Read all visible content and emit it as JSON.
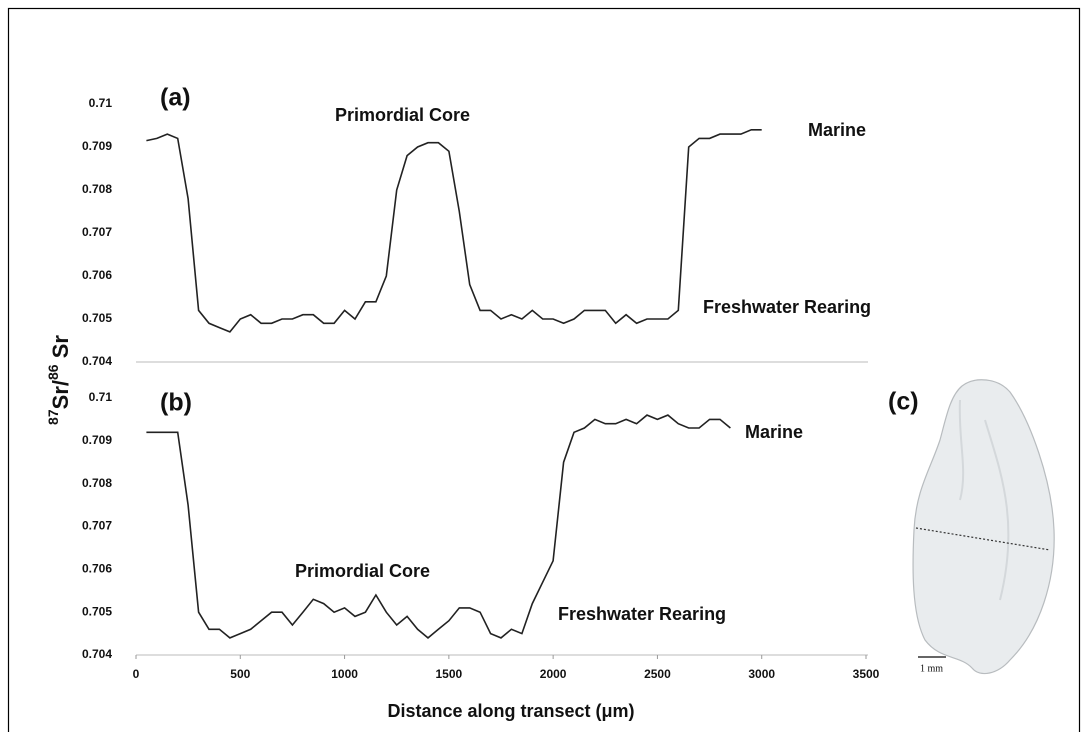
{
  "chart_data": [
    {
      "type": "line",
      "label": "(a)",
      "y_label_parts": [
        "87",
        "Sr/",
        "86",
        " Sr"
      ],
      "annotations": [
        "Primordial Core",
        "Marine",
        "Freshwater Rearing"
      ],
      "xlim": [
        0,
        3500
      ],
      "ylim": [
        0.704,
        0.71
      ],
      "yticks": [
        0.71,
        0.709,
        0.708,
        0.707,
        0.706,
        0.705,
        0.704
      ],
      "x": [
        50,
        100,
        150,
        200,
        250,
        300,
        350,
        400,
        450,
        500,
        550,
        600,
        650,
        700,
        750,
        800,
        850,
        900,
        950,
        1000,
        1050,
        1100,
        1150,
        1200,
        1250,
        1300,
        1350,
        1400,
        1450,
        1500,
        1550,
        1600,
        1650,
        1700,
        1750,
        1800,
        1850,
        1900,
        1950,
        2000,
        2050,
        2100,
        2150,
        2200,
        2250,
        2300,
        2350,
        2400,
        2450,
        2500,
        2550,
        2600,
        2650,
        2700,
        2750,
        2800,
        2850,
        2900,
        2950,
        3000
      ],
      "series": [
        {
          "color": "#222222",
          "values": [
            0.70915,
            0.7092,
            0.7093,
            0.7092,
            0.7078,
            0.7052,
            0.7049,
            0.7048,
            0.7047,
            0.705,
            0.7051,
            0.7049,
            0.7049,
            0.705,
            0.705,
            0.7051,
            0.7051,
            0.7049,
            0.7049,
            0.7052,
            0.705,
            0.7054,
            0.7054,
            0.706,
            0.708,
            0.7088,
            0.709,
            0.7091,
            0.7091,
            0.7089,
            0.7075,
            0.7058,
            0.7052,
            0.7052,
            0.705,
            0.7051,
            0.705,
            0.7052,
            0.705,
            0.705,
            0.7049,
            0.705,
            0.7052,
            0.7052,
            0.7052,
            0.7049,
            0.7051,
            0.7049,
            0.705,
            0.705,
            0.705,
            0.7052,
            0.709,
            0.7092,
            0.7092,
            0.7093,
            0.7093,
            0.7093,
            0.7094,
            0.7094
          ]
        }
      ]
    },
    {
      "type": "line",
      "label": "(b)",
      "annotations": [
        "Marine",
        "Primordial Core",
        "Freshwater Rearing"
      ],
      "x_label": "Distance along transect (μm)",
      "xlim": [
        0,
        3500
      ],
      "ylim": [
        0.704,
        0.71
      ],
      "xticks": [
        0,
        500,
        1000,
        1500,
        2000,
        2500,
        3000,
        3500
      ],
      "yticks": [
        0.71,
        0.709,
        0.708,
        0.707,
        0.706,
        0.705,
        0.704
      ],
      "x": [
        50,
        100,
        150,
        200,
        250,
        300,
        350,
        400,
        450,
        500,
        550,
        600,
        650,
        700,
        750,
        800,
        850,
        900,
        950,
        1000,
        1050,
        1100,
        1150,
        1200,
        1250,
        1300,
        1350,
        1400,
        1450,
        1500,
        1550,
        1600,
        1650,
        1700,
        1750,
        1800,
        1850,
        1900,
        1950,
        2000,
        2050,
        2100,
        2150,
        2200,
        2250,
        2300,
        2350,
        2400,
        2450,
        2500,
        2550,
        2600,
        2650,
        2700,
        2750,
        2800,
        2850
      ],
      "series": [
        {
          "color": "#222222",
          "values": [
            0.7092,
            0.7092,
            0.7092,
            0.7092,
            0.7075,
            0.705,
            0.7046,
            0.7046,
            0.7044,
            0.7045,
            0.7046,
            0.7048,
            0.705,
            0.705,
            0.7047,
            0.705,
            0.7053,
            0.7052,
            0.705,
            0.7051,
            0.7049,
            0.705,
            0.7054,
            0.705,
            0.7047,
            0.7049,
            0.7046,
            0.7044,
            0.7046,
            0.7048,
            0.7051,
            0.7051,
            0.705,
            0.7045,
            0.7044,
            0.7046,
            0.7045,
            0.7052,
            0.7057,
            0.7062,
            0.7085,
            0.7092,
            0.7093,
            0.7095,
            0.7094,
            0.7094,
            0.7095,
            0.7094,
            0.7096,
            0.7095,
            0.7096,
            0.7094,
            0.7093,
            0.7093,
            0.7095,
            0.7095,
            0.7093
          ]
        }
      ]
    }
  ],
  "image_c": {
    "label": "(c)",
    "scale_label": "1 mm"
  }
}
